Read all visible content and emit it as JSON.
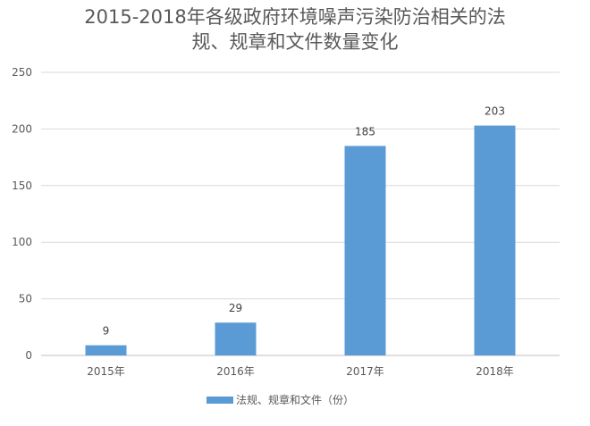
{
  "chart_data": {
    "type": "bar",
    "title_lines": [
      "2015-2018年各级政府环境噪声污染防治相关的法",
      "规、规章和文件数量变化"
    ],
    "categories": [
      "2015年",
      "2016年",
      "2017年",
      "2018年"
    ],
    "series": [
      {
        "name": "法规、规章和文件（份）",
        "values": [
          9,
          29,
          185,
          203
        ],
        "color": "#5b9bd5"
      }
    ],
    "ylim": [
      0,
      250
    ],
    "yticks": [
      0,
      50,
      100,
      150,
      200,
      250
    ],
    "grid": true,
    "legend_position": "bottom"
  }
}
